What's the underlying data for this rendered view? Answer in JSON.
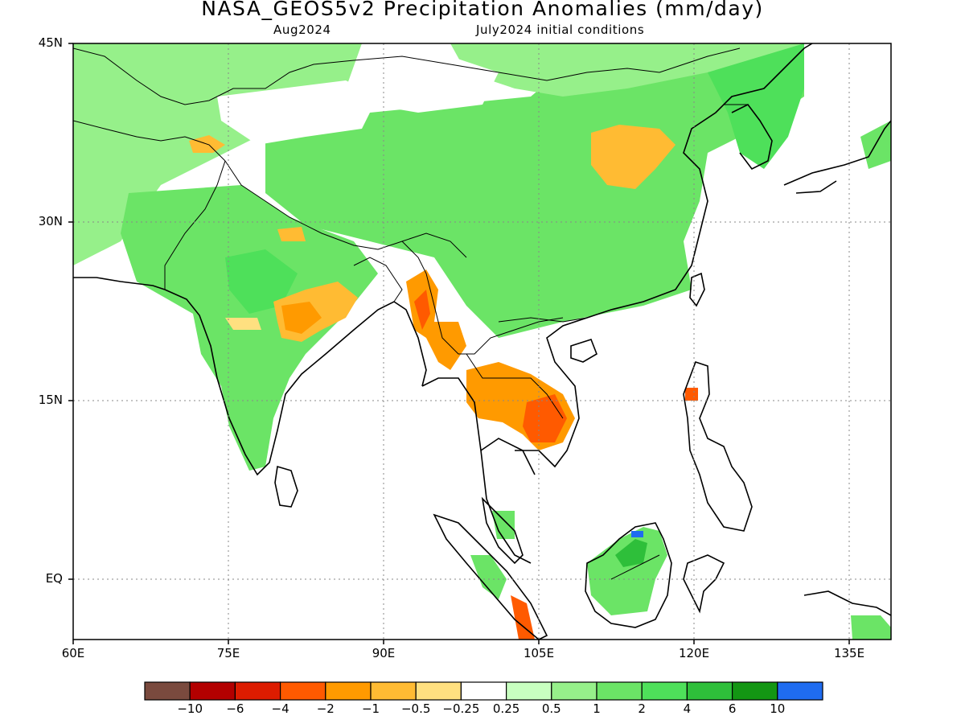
{
  "header": {
    "title": "NASA_GEOS5v2 Precipitation Anomalies (mm/day)",
    "subtitle_left": "Aug2024",
    "subtitle_right": "July2024 initial conditions"
  },
  "axes": {
    "lat_ticks": [
      "45N",
      "30N",
      "15N",
      "EQ"
    ],
    "lon_ticks": [
      "60E",
      "75E",
      "90E",
      "105E",
      "120E",
      "135E"
    ],
    "grid": "dotted",
    "extent": {
      "lon_min": 60,
      "lon_max": 139,
      "lat_min": -5,
      "lat_max": 45
    }
  },
  "colorbar": {
    "colors": [
      "#7a4a3e",
      "#b30000",
      "#dd1c00",
      "#ff5a00",
      "#ff9a00",
      "#ffbb33",
      "#ffe080",
      "#ffffff",
      "#c8ffc0",
      "#96f08a",
      "#6be466",
      "#4ee05a",
      "#2ebf3a",
      "#139613",
      "#1f6cf0"
    ],
    "labels": [
      "−10",
      "−6",
      "−4",
      "−2",
      "−1",
      "−0.5",
      "−0.25",
      "0.25",
      "0.5",
      "1",
      "2",
      "4",
      "6",
      "10"
    ]
  },
  "chart_data": {
    "type": "heatmap",
    "title": "NASA_GEOS5v2 Precipitation Anomalies (mm/day)",
    "variable": "Precipitation anomaly",
    "units": "mm/day",
    "valid_month": "Aug2024",
    "initialization": "July2024 initial conditions",
    "lon_range": [
      60,
      139
    ],
    "lat_range": [
      -5,
      45
    ],
    "levels": [
      -10,
      -6,
      -4,
      -2,
      -1,
      -0.5,
      -0.25,
      0.25,
      0.5,
      1,
      2,
      4,
      6,
      10
    ],
    "regions": [
      {
        "lon": [
          73,
          96
        ],
        "lat": [
          10,
          30
        ],
        "value": 1.5
      },
      {
        "lon": [
          77,
          86
        ],
        "lat": [
          19,
          24
        ],
        "value": -1.5
      },
      {
        "lon": [
          92,
          98
        ],
        "lat": [
          17,
          25
        ],
        "value": -1.5
      },
      {
        "lon": [
          98,
          109
        ],
        "lat": [
          11,
          18
        ],
        "value": -1.5
      },
      {
        "lon": [
          100,
          123
        ],
        "lat": [
          22,
          45
        ],
        "value": 1
      },
      {
        "lon": [
          111,
          118
        ],
        "lat": [
          33,
          38
        ],
        "value": -0.75
      },
      {
        "lon": [
          109,
          118
        ],
        "lat": [
          -3,
          6
        ],
        "value": 2
      },
      {
        "lon": [
          122,
          130
        ],
        "lat": [
          35,
          45
        ],
        "value": 1.5
      },
      {
        "lon": [
          103,
          106
        ],
        "lat": [
          -4,
          0
        ],
        "value": -2
      },
      {
        "lon": [
          78,
          86
        ],
        "lat": [
          36,
          43
        ],
        "value": 0
      }
    ]
  }
}
